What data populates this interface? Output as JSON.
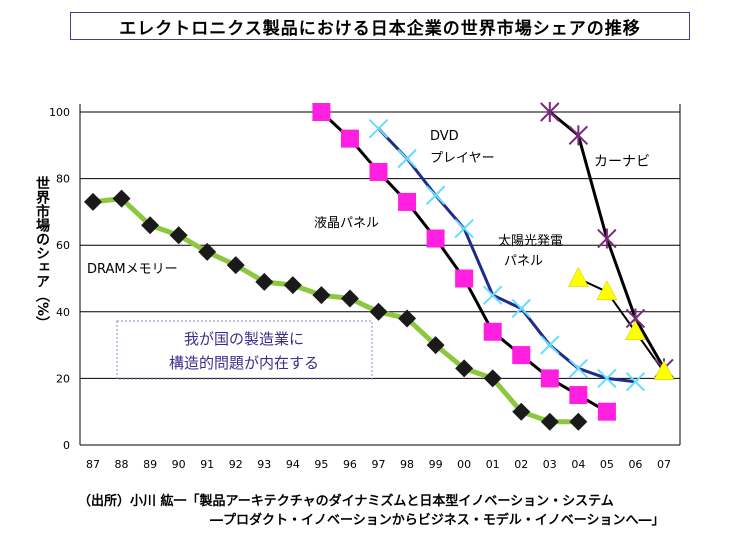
{
  "title": "エレクトロニクス製品における日本企業の世界市場シェアの推移",
  "source": {
    "line1": "（出所）小川 紘一「製品アーキテクチャのダイナミズムと日本型イノベーション・システム",
    "line2": "―プロダクト・イノベーションからビジネス・モデル・イノベーションへ―」"
  },
  "callout": {
    "line1": "我が国の製造業に",
    "line2": "構造的問題が内在する"
  },
  "chart_data": {
    "type": "line",
    "title": "エレクトロニクス製品における日本企業の世界市場シェアの推移",
    "ylabel": "世界市場のシェア（%）",
    "xlabel": "",
    "ylim": [
      0,
      100
    ],
    "yticks": [
      0,
      20,
      40,
      60,
      80,
      100
    ],
    "categories": [
      "87",
      "88",
      "89",
      "90",
      "91",
      "92",
      "93",
      "94",
      "95",
      "96",
      "97",
      "98",
      "99",
      "00",
      "01",
      "02",
      "03",
      "04",
      "05",
      "06",
      "07"
    ],
    "grid": "horizontal",
    "series": [
      {
        "name": "DRAMメモリー",
        "line_color": "#8dc63f",
        "marker": "diamond",
        "marker_color": "#1a1a1a",
        "values": [
          73,
          74,
          66,
          63,
          58,
          54,
          49,
          48,
          45,
          44,
          40,
          38,
          30,
          23,
          20,
          10,
          7,
          7,
          null,
          null,
          null
        ]
      },
      {
        "name": "液晶パネル",
        "line_color": "#000000",
        "marker": "square",
        "marker_color": "#ff1fe0",
        "values": [
          null,
          null,
          null,
          null,
          null,
          null,
          null,
          null,
          100,
          92,
          82,
          73,
          62,
          50,
          34,
          27,
          20,
          15,
          10,
          null,
          null
        ]
      },
      {
        "name": "DVD\nプレイヤー",
        "line_color": "#1f2a8a",
        "marker": "x",
        "marker_color": "#66ddff",
        "values": [
          null,
          null,
          null,
          null,
          null,
          null,
          null,
          null,
          null,
          null,
          95,
          86,
          75,
          65,
          45,
          41,
          30,
          23,
          20,
          19,
          null
        ]
      },
      {
        "name": "カーナビ",
        "line_color": "#000000",
        "marker": "asterisk",
        "marker_color": "#7a2a7a",
        "values": [
          null,
          null,
          null,
          null,
          null,
          null,
          null,
          null,
          null,
          null,
          null,
          null,
          null,
          null,
          null,
          null,
          100,
          93,
          62,
          38,
          23
        ]
      },
      {
        "name": "太陽光発電\nパネル",
        "line_color": "#000000",
        "marker": "triangle",
        "marker_color": "#ffff00",
        "values": [
          null,
          null,
          null,
          null,
          null,
          null,
          null,
          null,
          null,
          null,
          null,
          null,
          null,
          null,
          null,
          null,
          null,
          50,
          46,
          34,
          22
        ]
      }
    ]
  }
}
